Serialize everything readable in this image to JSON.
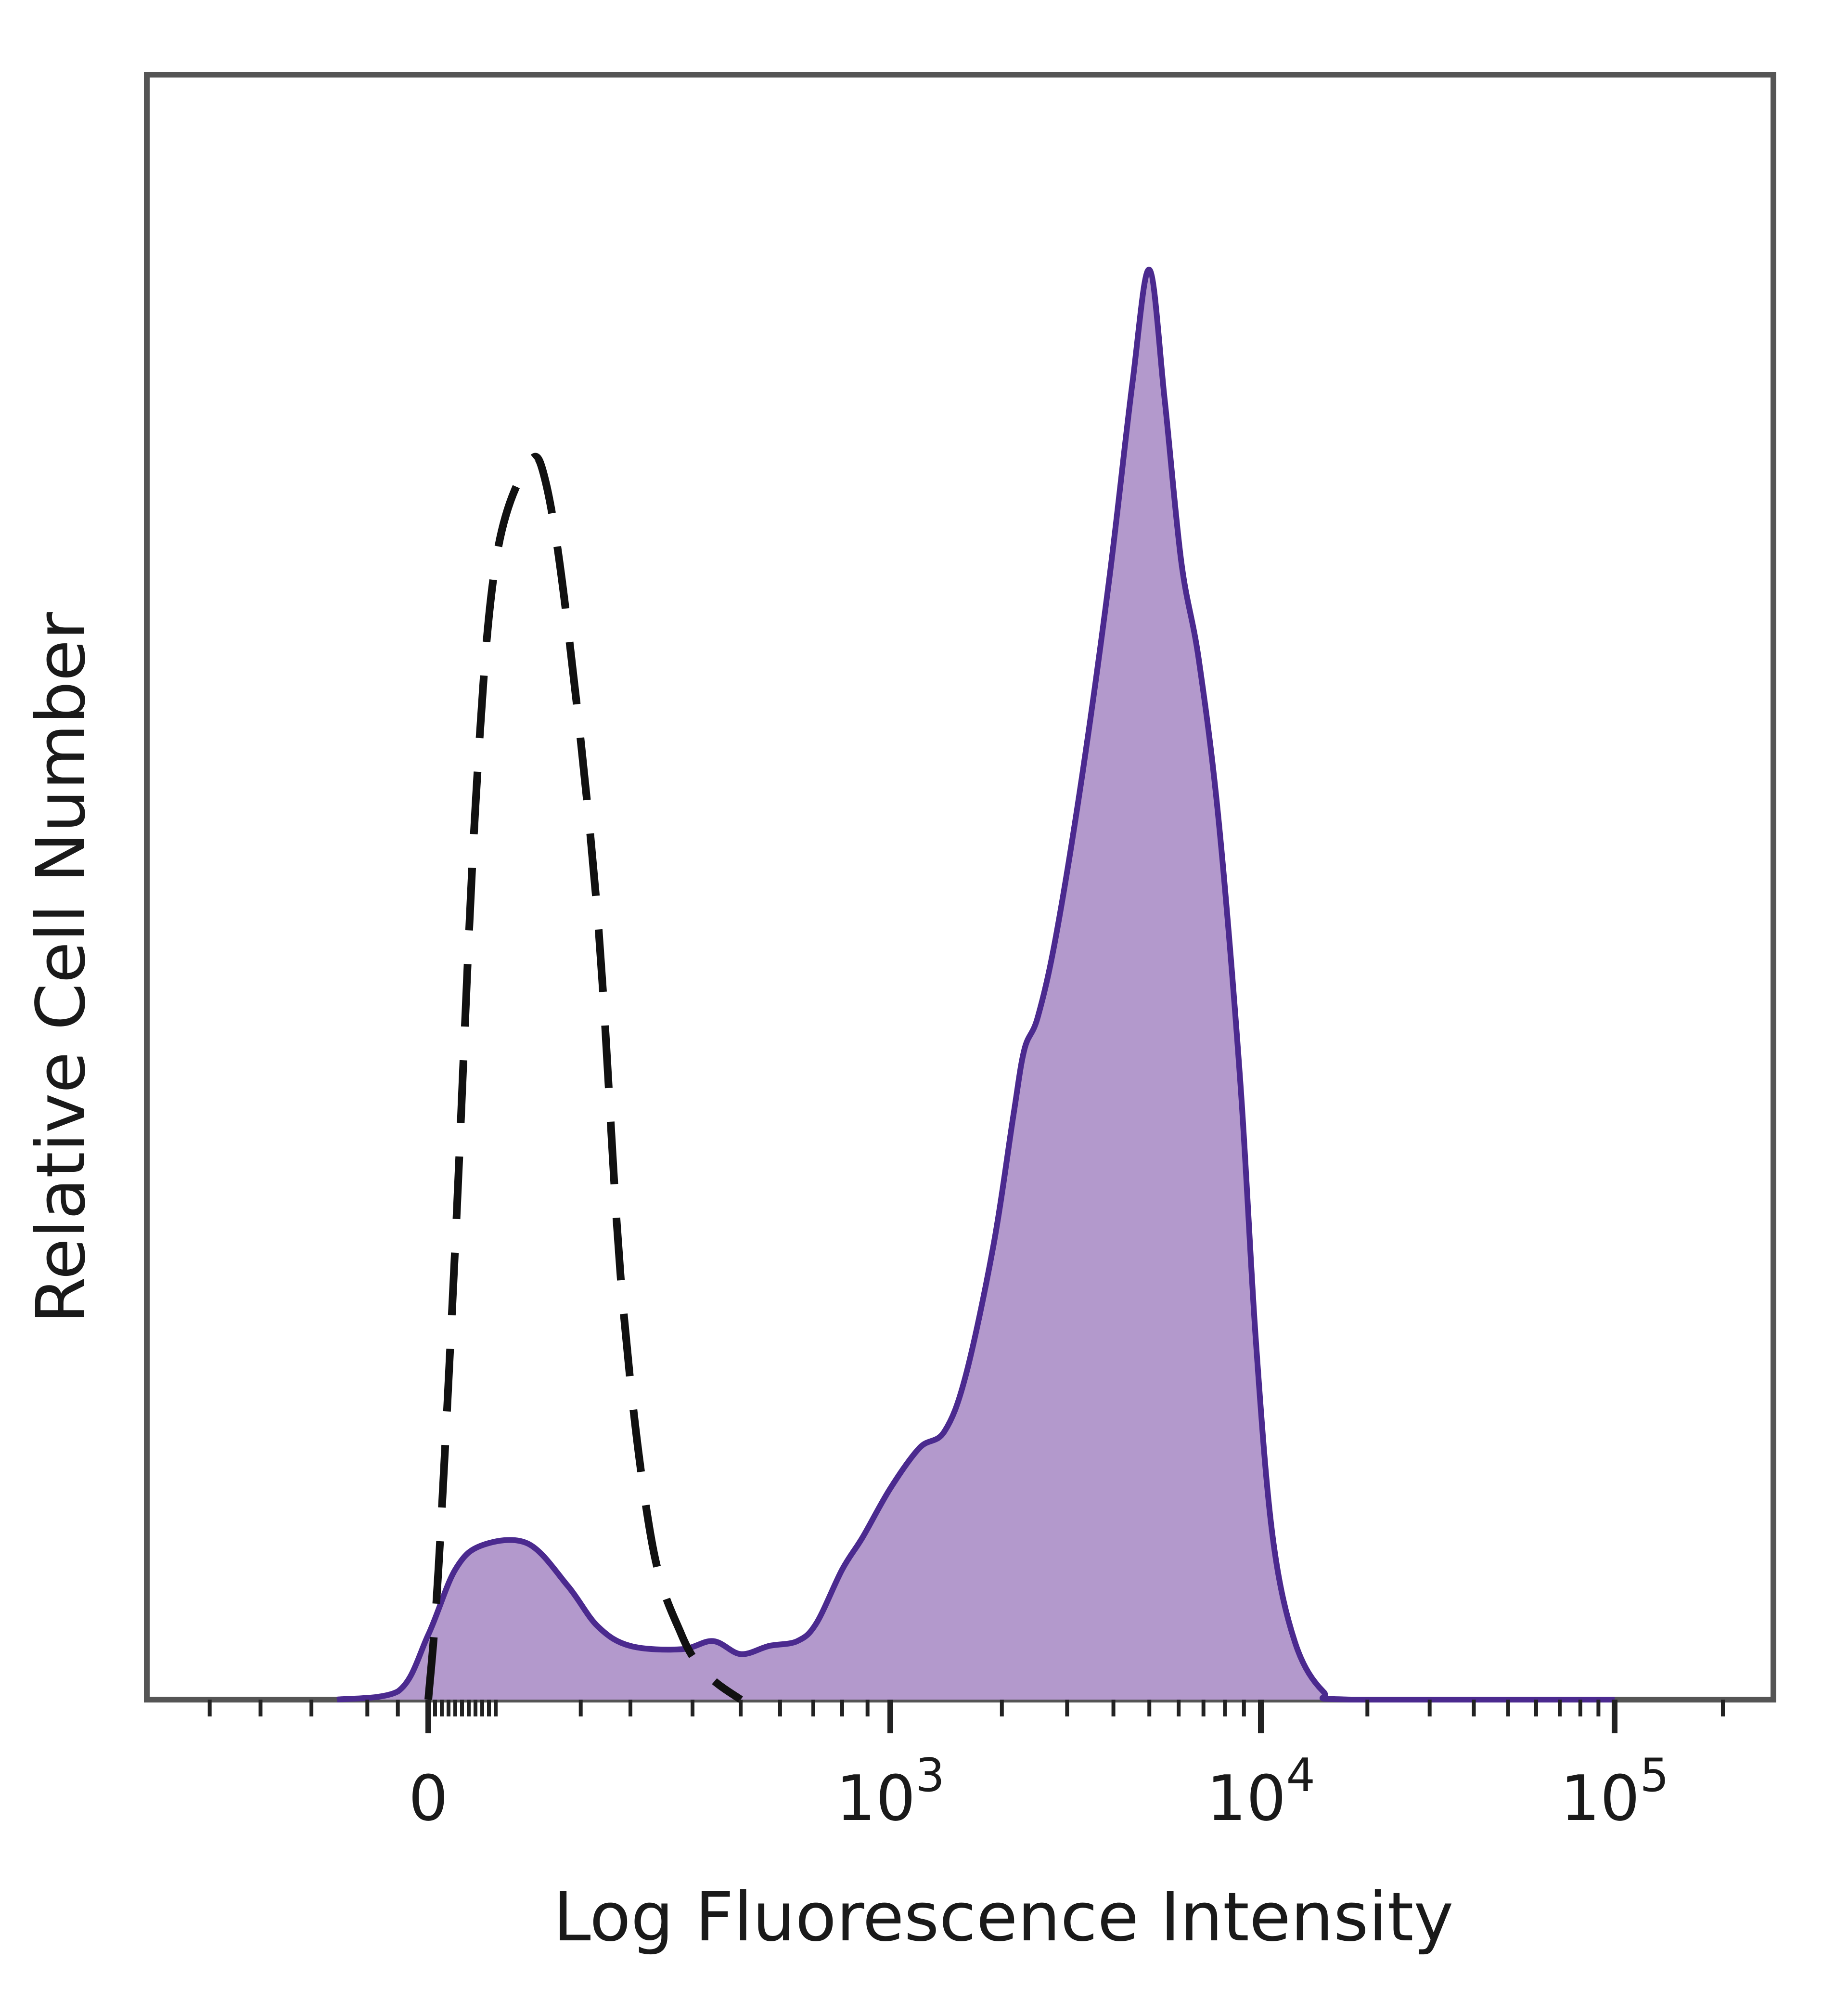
{
  "chart_data": {
    "type": "area",
    "title": "",
    "xlabel": "Log Fluorescence Intensity",
    "ylabel": "Relative Cell Number",
    "x_scale": "biexponential",
    "y_ticks_labeled": false,
    "ylim": [
      0,
      100
    ],
    "grid": false,
    "x_ticks": [
      {
        "value": 0,
        "label": "0"
      },
      {
        "value": 1000,
        "label": "10",
        "exponent": "3"
      },
      {
        "value": 10000,
        "label": "10",
        "exponent": "4"
      },
      {
        "value": 100000,
        "label": "10",
        "exponent": "5"
      }
    ],
    "series": [
      {
        "name": "",
        "style": "filled",
        "fill_color": "#b399cc",
        "line_color": "#4b2a8f",
        "points": [
          [
            -150,
            0
          ],
          [
            -50,
            0.5
          ],
          [
            0,
            4
          ],
          [
            40,
            8
          ],
          [
            80,
            9.5
          ],
          [
            130,
            9.6
          ],
          [
            180,
            7
          ],
          [
            230,
            4.5
          ],
          [
            300,
            3.3
          ],
          [
            380,
            3.1
          ],
          [
            440,
            3.6
          ],
          [
            500,
            2.8
          ],
          [
            570,
            3.3
          ],
          [
            650,
            3.6
          ],
          [
            710,
            4.7
          ],
          [
            800,
            8
          ],
          [
            880,
            10
          ],
          [
            1000,
            13
          ],
          [
            1200,
            15.5
          ],
          [
            1400,
            16.5
          ],
          [
            1600,
            20
          ],
          [
            1900,
            28
          ],
          [
            2150,
            36
          ],
          [
            2300,
            40
          ],
          [
            2500,
            42
          ],
          [
            2800,
            47
          ],
          [
            3300,
            57
          ],
          [
            3900,
            69
          ],
          [
            4500,
            81
          ],
          [
            5000,
            88
          ],
          [
            5500,
            80
          ],
          [
            6100,
            70
          ],
          [
            6800,
            64
          ],
          [
            7700,
            54
          ],
          [
            8800,
            38
          ],
          [
            9700,
            22
          ],
          [
            10800,
            10
          ],
          [
            12500,
            3.5
          ],
          [
            15000,
            0.5
          ],
          [
            18000,
            0
          ],
          [
            100000,
            0
          ]
        ]
      },
      {
        "name": "",
        "style": "dashed",
        "line_color": "#111111",
        "points": [
          [
            0,
            0
          ],
          [
            15,
            8
          ],
          [
            40,
            28
          ],
          [
            70,
            55
          ],
          [
            100,
            70
          ],
          [
            130,
            76
          ],
          [
            150,
            75
          ],
          [
            180,
            66
          ],
          [
            230,
            48
          ],
          [
            280,
            25
          ],
          [
            330,
            10
          ],
          [
            380,
            4
          ],
          [
            430,
            1.5
          ],
          [
            500,
            0
          ]
        ]
      }
    ]
  }
}
